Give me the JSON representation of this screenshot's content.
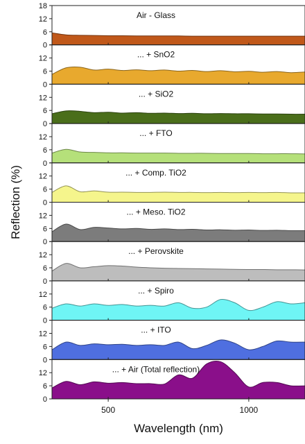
{
  "chart_data": {
    "type": "area",
    "xlabel": "Wavelength (nm)",
    "ylabel": "Reflection (%)",
    "xlim": [
      300,
      1200
    ],
    "ylim": [
      0,
      18
    ],
    "x_ticks": [
      500,
      1000
    ],
    "y_ticks": [
      0,
      6,
      12,
      18
    ],
    "x_tick_labels": [
      "500",
      "1000"
    ],
    "y_tick_labels": [
      "0",
      "6",
      "12",
      "18"
    ],
    "layout": "10 vertically stacked panels sharing the x-axis",
    "x": [
      300,
      350,
      400,
      450,
      500,
      550,
      600,
      650,
      700,
      750,
      800,
      850,
      900,
      950,
      1000,
      1050,
      1100,
      1150,
      1200
    ],
    "series": [
      {
        "name": "Air - Glass",
        "color": "#c0581a",
        "values": [
          5.5,
          4.6,
          4.4,
          4.3,
          4.2,
          4.2,
          4.1,
          4.1,
          4.1,
          4.1,
          4.0,
          4.0,
          4.0,
          4.0,
          4.0,
          4.0,
          4.0,
          4.0,
          4.0
        ]
      },
      {
        "name": "... + SnO2",
        "color": "#e8a92e",
        "values": [
          4.5,
          7.5,
          7.8,
          6.5,
          6.9,
          6.3,
          6.6,
          6.2,
          6.5,
          6.0,
          6.3,
          5.8,
          6.2,
          5.7,
          5.9,
          5.5,
          5.8,
          5.3,
          5.6
        ]
      },
      {
        "name": "... + SiO2",
        "color": "#4a6e1a",
        "values": [
          4.5,
          5.8,
          5.6,
          5.0,
          5.2,
          4.8,
          5.0,
          4.7,
          4.8,
          4.6,
          4.7,
          4.5,
          4.6,
          4.5,
          4.5,
          4.4,
          4.4,
          4.3,
          4.3
        ]
      },
      {
        "name": "... + FTO",
        "color": "#b5e07a",
        "values": [
          4.5,
          6.2,
          5.0,
          4.8,
          4.6,
          4.6,
          4.5,
          4.5,
          4.5,
          4.4,
          4.4,
          4.4,
          4.3,
          4.3,
          4.3,
          4.2,
          4.2,
          4.2,
          4.1
        ]
      },
      {
        "name": "... + Comp. TiO2",
        "color": "#f5f58c",
        "values": [
          4.5,
          7.5,
          4.8,
          5.2,
          4.6,
          4.6,
          4.5,
          4.5,
          4.6,
          4.5,
          4.5,
          4.4,
          4.5,
          4.4,
          4.5,
          4.4,
          4.5,
          4.3,
          4.3
        ]
      },
      {
        "name": "... + Meso. TiO2",
        "color": "#7c7c7c",
        "values": [
          4.5,
          8.0,
          5.5,
          6.5,
          6.2,
          5.8,
          6.0,
          5.6,
          5.8,
          5.5,
          5.6,
          5.3,
          5.4,
          5.2,
          5.3,
          5.1,
          5.2,
          5.0,
          5.0
        ]
      },
      {
        "name": "... + Perovskite",
        "color": "#bdbdbd",
        "values": [
          4.5,
          8.0,
          6.0,
          6.5,
          7.0,
          6.8,
          6.3,
          6.0,
          5.8,
          5.7,
          5.6,
          5.5,
          5.4,
          5.3,
          5.2,
          5.2,
          5.1,
          5.1,
          5.0
        ]
      },
      {
        "name": "... + Spiro",
        "color": "#6ff5f5",
        "values": [
          5.5,
          7.5,
          6.5,
          7.5,
          6.8,
          7.2,
          6.5,
          6.8,
          6.5,
          8.0,
          5.5,
          6.0,
          9.5,
          8.0,
          4.5,
          6.0,
          8.5,
          7.5,
          8.0
        ]
      },
      {
        "name": "... + ITO",
        "color": "#4f6fe0",
        "values": [
          4.5,
          8.0,
          6.5,
          7.2,
          6.8,
          7.0,
          6.5,
          6.8,
          6.5,
          8.0,
          5.0,
          6.5,
          9.0,
          7.5,
          4.5,
          6.0,
          8.5,
          8.0,
          8.0
        ]
      },
      {
        "name": "... + Air (Total reflection)",
        "color": "#8a0f8a",
        "values": [
          5.0,
          8.0,
          6.5,
          7.8,
          7.2,
          7.5,
          7.0,
          7.0,
          6.8,
          11.0,
          9.5,
          16.0,
          17.0,
          12.0,
          5.5,
          7.5,
          7.5,
          6.0,
          6.0
        ]
      }
    ]
  }
}
